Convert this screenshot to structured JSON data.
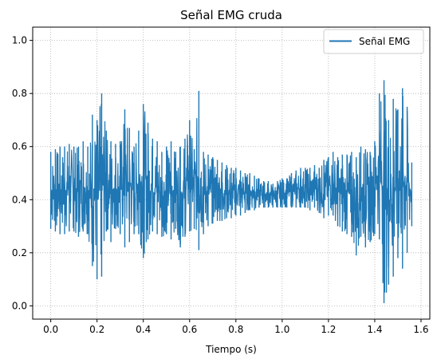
{
  "chart_data": {
    "type": "line",
    "title": "Señal EMG cruda",
    "xlabel": "Tiempo (s)",
    "ylabel": "",
    "xlim": [
      -0.078,
      1.638
    ],
    "ylim": [
      -0.05,
      1.05
    ],
    "xticks": [
      0.0,
      0.2,
      0.4,
      0.6,
      0.8,
      1.0,
      1.2,
      1.4,
      1.6
    ],
    "xtick_labels": [
      "0.0",
      "0.2",
      "0.4",
      "0.6",
      "0.8",
      "1.0",
      "1.2",
      "1.4",
      "1.6"
    ],
    "yticks": [
      0.0,
      0.2,
      0.4,
      0.6,
      0.8,
      1.0
    ],
    "ytick_labels": [
      "0.0",
      "0.2",
      "0.4",
      "0.6",
      "0.8",
      "1.0"
    ],
    "grid": true,
    "grid_style": "dotted",
    "legend_position": "top-right",
    "series": [
      {
        "name": "Señal EMG",
        "color": "#1f77b4",
        "x": [
          0.0,
          0.02,
          0.04,
          0.06,
          0.08,
          0.1,
          0.12,
          0.14,
          0.16,
          0.18,
          0.2,
          0.22,
          0.24,
          0.26,
          0.28,
          0.3,
          0.32,
          0.34,
          0.36,
          0.38,
          0.4,
          0.42,
          0.44,
          0.46,
          0.48,
          0.5,
          0.52,
          0.54,
          0.56,
          0.58,
          0.6,
          0.62,
          0.64,
          0.66,
          0.68,
          0.7,
          0.72,
          0.74,
          0.76,
          0.78,
          0.8,
          0.82,
          0.84,
          0.86,
          0.88,
          0.9,
          0.92,
          0.94,
          0.96,
          0.98,
          1.0,
          1.02,
          1.04,
          1.06,
          1.08,
          1.1,
          1.12,
          1.14,
          1.16,
          1.18,
          1.2,
          1.22,
          1.24,
          1.26,
          1.28,
          1.3,
          1.32,
          1.34,
          1.36,
          1.38,
          1.4,
          1.42,
          1.44,
          1.46,
          1.48,
          1.5,
          1.52,
          1.54,
          1.56
        ],
        "y_max": [
          0.58,
          0.59,
          0.6,
          0.6,
          0.61,
          0.6,
          0.6,
          0.62,
          0.6,
          0.72,
          0.7,
          0.8,
          0.66,
          0.62,
          0.61,
          0.62,
          0.74,
          0.67,
          0.6,
          0.66,
          0.76,
          0.69,
          0.63,
          0.62,
          0.58,
          0.6,
          0.62,
          0.58,
          0.6,
          0.63,
          0.7,
          0.59,
          0.81,
          0.58,
          0.57,
          0.56,
          0.55,
          0.54,
          0.53,
          0.52,
          0.52,
          0.51,
          0.5,
          0.5,
          0.49,
          0.48,
          0.47,
          0.47,
          0.46,
          0.47,
          0.48,
          0.48,
          0.5,
          0.51,
          0.52,
          0.52,
          0.52,
          0.53,
          0.52,
          0.55,
          0.56,
          0.58,
          0.56,
          0.57,
          0.57,
          0.58,
          0.56,
          0.6,
          0.59,
          0.58,
          0.62,
          0.8,
          0.85,
          0.7,
          0.78,
          0.74,
          0.82,
          0.75,
          0.54
        ],
        "y_min": [
          0.29,
          0.28,
          0.27,
          0.27,
          0.28,
          0.28,
          0.26,
          0.28,
          0.27,
          0.15,
          0.1,
          0.11,
          0.28,
          0.24,
          0.29,
          0.27,
          0.22,
          0.24,
          0.27,
          0.27,
          0.18,
          0.25,
          0.28,
          0.27,
          0.26,
          0.27,
          0.25,
          0.29,
          0.22,
          0.26,
          0.28,
          0.29,
          0.21,
          0.27,
          0.3,
          0.31,
          0.32,
          0.32,
          0.33,
          0.33,
          0.34,
          0.34,
          0.35,
          0.36,
          0.36,
          0.37,
          0.37,
          0.37,
          0.37,
          0.37,
          0.37,
          0.37,
          0.37,
          0.37,
          0.37,
          0.37,
          0.36,
          0.37,
          0.35,
          0.33,
          0.34,
          0.34,
          0.3,
          0.28,
          0.27,
          0.26,
          0.19,
          0.26,
          0.22,
          0.24,
          0.27,
          0.25,
          0.01,
          0.08,
          0.11,
          0.18,
          0.14,
          0.2,
          0.3
        ]
      }
    ]
  }
}
